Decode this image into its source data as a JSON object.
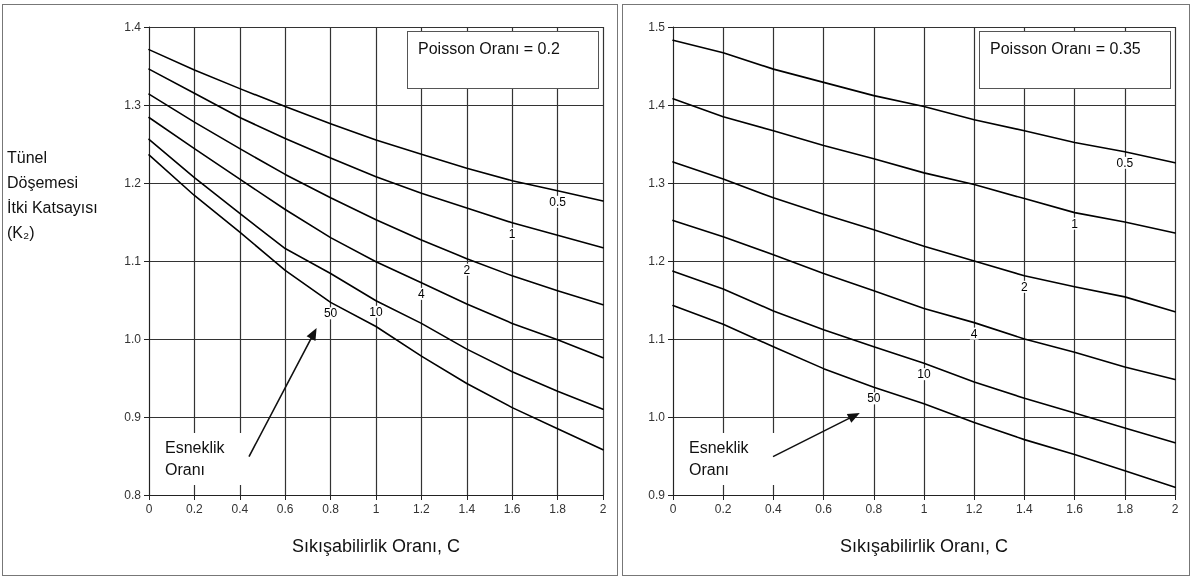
{
  "chart_data": [
    {
      "type": "line",
      "xlabel": "Sıkışabilirlik Oranı, C",
      "ylabel": "Tünel Döşemesi İtki Katsayısı (K₂)",
      "x": [
        0,
        0.2,
        0.4,
        0.6,
        0.8,
        1.0,
        1.2,
        1.4,
        1.6,
        1.8,
        2.0
      ],
      "series": [
        {
          "name": "0.5",
          "color": "#000000",
          "values": [
            1.371,
            1.345,
            1.321,
            1.298,
            1.276,
            1.255,
            1.237,
            1.219,
            1.203,
            1.19,
            1.177
          ]
        },
        {
          "name": "1",
          "color": "#000000",
          "values": [
            1.346,
            1.315,
            1.284,
            1.257,
            1.232,
            1.208,
            1.187,
            1.168,
            1.149,
            1.133,
            1.117
          ]
        },
        {
          "name": "2",
          "color": "#000000",
          "values": [
            1.314,
            1.278,
            1.244,
            1.211,
            1.181,
            1.153,
            1.127,
            1.103,
            1.081,
            1.062,
            1.044
          ]
        },
        {
          "name": "4",
          "color": "#000000",
          "values": [
            1.284,
            1.244,
            1.205,
            1.166,
            1.13,
            1.099,
            1.072,
            1.045,
            1.02,
            0.999,
            0.976
          ]
        },
        {
          "name": "10",
          "color": "#000000",
          "values": [
            1.256,
            1.207,
            1.161,
            1.116,
            1.084,
            1.049,
            1.02,
            0.987,
            0.958,
            0.933,
            0.91
          ]
        },
        {
          "name": "50",
          "color": "#000000",
          "values": [
            1.236,
            1.184,
            1.137,
            1.088,
            1.047,
            1.016,
            0.978,
            0.943,
            0.912,
            0.885,
            0.858
          ]
        }
      ],
      "xlim": [
        0,
        2
      ],
      "xticks": [
        0,
        0.2,
        0.4,
        0.6,
        0.8,
        1,
        1.2,
        1.4,
        1.6,
        1.8,
        2
      ],
      "ylim": [
        0.8,
        1.4
      ],
      "yticks": [
        0.8,
        0.9,
        {
          "value": 1.0,
          "label": "1.0"
        },
        1.1,
        1.2,
        1.3,
        1.4
      ],
      "grid": true,
      "legend": false,
      "marker": "none",
      "line_style": "solid",
      "annotations": [
        "Poisson Oranı = 0.2",
        "Esneklik Oranı"
      ]
    },
    {
      "type": "line",
      "xlabel": "Sıkışabilirlik Oranı, C",
      "x": [
        0,
        0.2,
        0.4,
        0.6,
        0.8,
        1.0,
        1.2,
        1.4,
        1.6,
        1.8,
        2.0
      ],
      "series": [
        {
          "name": "0.5",
          "color": "#000000",
          "values": [
            1.483,
            1.467,
            1.446,
            1.429,
            1.412,
            1.398,
            1.381,
            1.367,
            1.352,
            1.34,
            1.326
          ]
        },
        {
          "name": "1",
          "color": "#000000",
          "values": [
            1.408,
            1.385,
            1.367,
            1.348,
            1.331,
            1.313,
            1.298,
            1.28,
            1.262,
            1.25,
            1.236
          ]
        },
        {
          "name": "2",
          "color": "#000000",
          "values": [
            1.327,
            1.305,
            1.281,
            1.26,
            1.24,
            1.219,
            1.2,
            1.181,
            1.167,
            1.154,
            1.135
          ]
        },
        {
          "name": "4",
          "color": "#000000",
          "values": [
            1.252,
            1.231,
            1.208,
            1.184,
            1.162,
            1.139,
            1.121,
            1.1,
            1.083,
            1.064,
            1.048
          ]
        },
        {
          "name": "10",
          "color": "#000000",
          "values": [
            1.187,
            1.164,
            1.136,
            1.112,
            1.09,
            1.069,
            1.045,
            1.024,
            1.005,
            0.986,
            0.967
          ]
        },
        {
          "name": "50",
          "color": "#000000",
          "values": [
            1.143,
            1.119,
            1.09,
            1.062,
            1.038,
            1.017,
            0.993,
            0.971,
            0.952,
            0.931,
            0.91
          ]
        }
      ],
      "xlim": [
        0,
        2
      ],
      "xticks": [
        0,
        0.2,
        0.4,
        0.6,
        0.8,
        1,
        1.2,
        1.4,
        1.6,
        1.8,
        2
      ],
      "ylim": [
        0.9,
        1.5
      ],
      "yticks": [
        0.9,
        {
          "value": 1.0,
          "label": "1.0"
        },
        1.1,
        1.2,
        1.3,
        1.4,
        1.5
      ],
      "grid": true,
      "legend": false,
      "marker": "none",
      "line_style": "solid",
      "annotations": [
        "Poisson Oranı = 0.35",
        "Esneklik Oranı"
      ]
    }
  ]
}
